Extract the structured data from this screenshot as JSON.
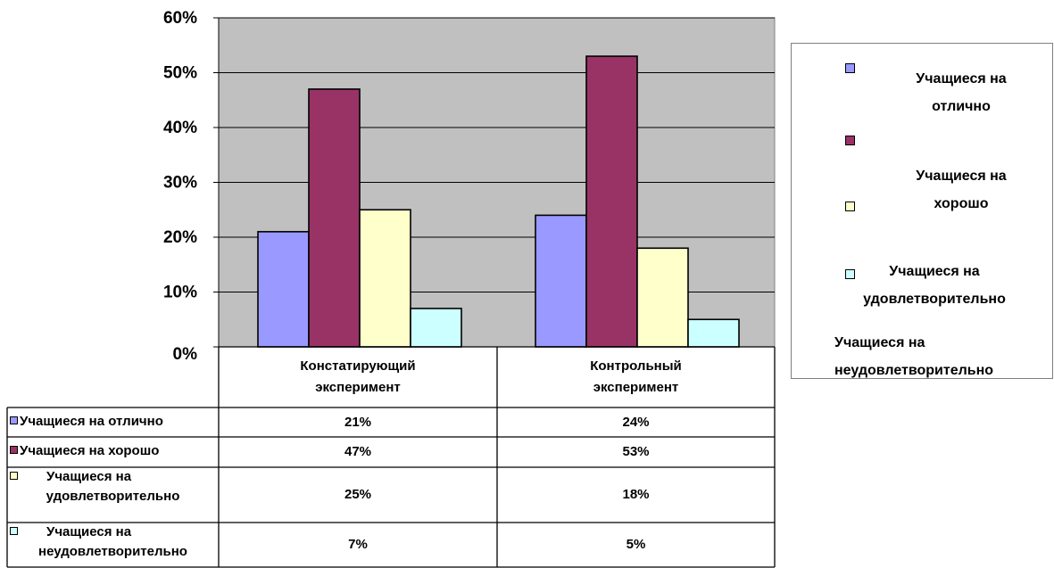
{
  "chart_data": {
    "type": "bar",
    "categories": [
      "Констатирующий эксперимент",
      "Контрольный эксперимент"
    ],
    "category_lines": [
      [
        "Констатирующий",
        "эксперимент"
      ],
      [
        "Контрольный",
        "эксперимент"
      ]
    ],
    "ylim": [
      0,
      60
    ],
    "yticks": [
      "0%",
      "10%",
      "20%",
      "30%",
      "40%",
      "50%",
      "60%"
    ],
    "grid": true,
    "legend_position": "right",
    "series": [
      {
        "name": "Учащиеся на отлично",
        "values": [
          21,
          24
        ],
        "labels": [
          "21%",
          "24%"
        ],
        "color": "#9999ff"
      },
      {
        "name": "Учащиеся на хорошо",
        "values": [
          47,
          53
        ],
        "labels": [
          "47%",
          "53%"
        ],
        "color": "#993366"
      },
      {
        "name": "Учащиеся на удовлетворительно",
        "values": [
          25,
          18
        ],
        "labels": [
          "25%",
          "18%"
        ],
        "color": "#ffffcc"
      },
      {
        "name": "Учащиеся на неудовлетворительно",
        "values": [
          7,
          5
        ],
        "labels": [
          "7%",
          "5%"
        ],
        "color": "#ccffff"
      }
    ],
    "legend": {
      "entries": [
        {
          "lines": [
            "Учащиеся на",
            "отлично"
          ]
        },
        {
          "lines": [
            "Учащиеся на",
            "хорошо"
          ]
        },
        {
          "lines": [
            "Учащиеся на",
            "удовлетворительно"
          ]
        },
        {
          "lines": [
            "Учащиеся на",
            "неудовлетворительно"
          ]
        }
      ]
    },
    "table_row_labels": [
      [
        "Учащиеся на отлично"
      ],
      [
        "Учащиеся на хорошо"
      ],
      [
        "Учащиеся на",
        "удовлетворительно"
      ],
      [
        "Учащиеся на",
        "неудовлетворительно"
      ]
    ],
    "plot_background": "#c0c0c0"
  }
}
